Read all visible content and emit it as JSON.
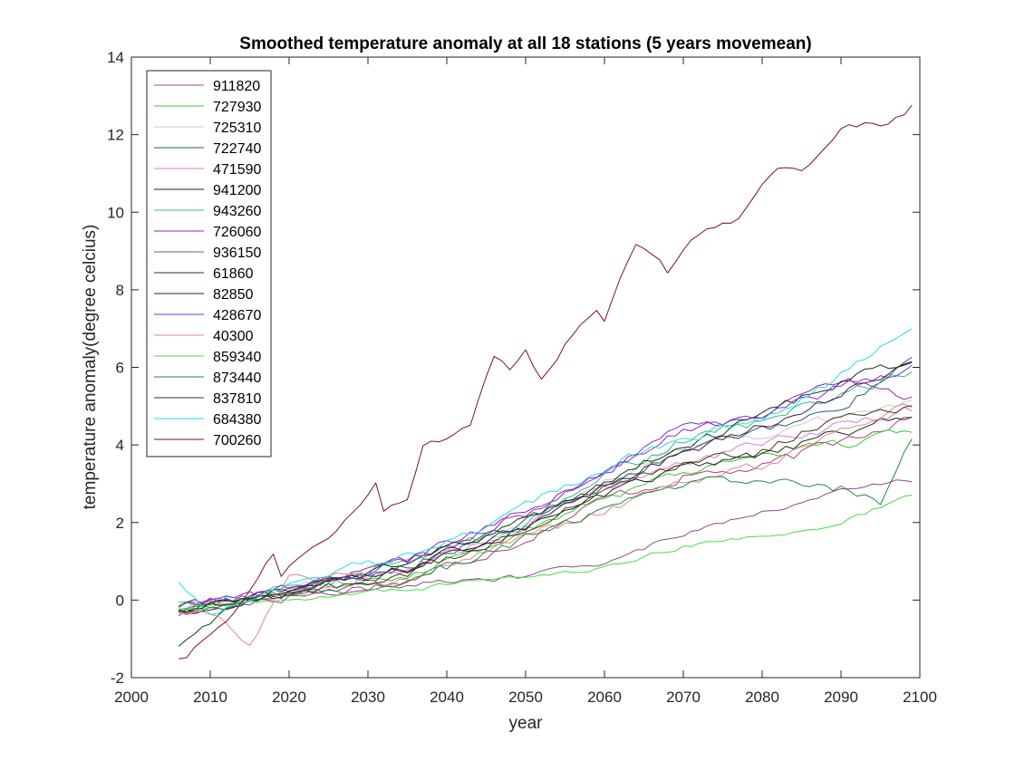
{
  "chart_data": {
    "type": "line",
    "title": "Smoothed temperature anomaly at all 18 stations (5 years movemean)",
    "xlabel": "year",
    "ylabel": "temperature anomaly(degree celcius)",
    "xlim": [
      2000,
      2100
    ],
    "ylim": [
      -2,
      14
    ],
    "xticks": [
      2000,
      2010,
      2020,
      2030,
      2040,
      2050,
      2060,
      2070,
      2080,
      2090,
      2100
    ],
    "yticks": [
      -2,
      0,
      2,
      4,
      6,
      8,
      10,
      12,
      14
    ],
    "grid": false,
    "legend_position": "top-left",
    "x_range": [
      2006,
      2099
    ],
    "series": [
      {
        "name": "911820",
        "color": "#b0407a",
        "anchors": [
          [
            2006,
            -0.1
          ],
          [
            2020,
            0.1
          ],
          [
            2035,
            0.5
          ],
          [
            2050,
            1.6
          ],
          [
            2060,
            2.6
          ],
          [
            2070,
            3.2
          ],
          [
            2080,
            3.4
          ],
          [
            2090,
            4.1
          ],
          [
            2099,
            4.8
          ]
        ],
        "noise": 0.28
      },
      {
        "name": "727930",
        "color": "#33cc33",
        "anchors": [
          [
            2006,
            -0.2
          ],
          [
            2020,
            0.2
          ],
          [
            2035,
            0.7
          ],
          [
            2050,
            1.8
          ],
          [
            2060,
            2.7
          ],
          [
            2070,
            3.3
          ],
          [
            2080,
            3.8
          ],
          [
            2090,
            4.0
          ],
          [
            2099,
            4.3
          ]
        ],
        "noise": 0.28
      },
      {
        "name": "725310",
        "color": "#c8c8c8",
        "anchors": [
          [
            2006,
            -0.2
          ],
          [
            2020,
            0.3
          ],
          [
            2035,
            0.9
          ],
          [
            2050,
            2.0
          ],
          [
            2060,
            3.0
          ],
          [
            2070,
            4.0
          ],
          [
            2080,
            4.3
          ],
          [
            2090,
            4.7
          ],
          [
            2099,
            5.1
          ]
        ],
        "noise": 0.25
      },
      {
        "name": "722740",
        "color": "#1f5f5f",
        "anchors": [
          [
            2006,
            -0.3
          ],
          [
            2020,
            0.2
          ],
          [
            2035,
            0.9
          ],
          [
            2050,
            2.0
          ],
          [
            2060,
            3.0
          ],
          [
            2070,
            3.8
          ],
          [
            2080,
            4.4
          ],
          [
            2090,
            5.0
          ],
          [
            2099,
            6.1
          ]
        ],
        "noise": 0.25
      },
      {
        "name": "471590",
        "color": "#d080d0",
        "anchors": [
          [
            2006,
            -0.2
          ],
          [
            2020,
            0.2
          ],
          [
            2035,
            0.8
          ],
          [
            2050,
            1.9
          ],
          [
            2060,
            2.9
          ],
          [
            2070,
            3.6
          ],
          [
            2080,
            4.0
          ],
          [
            2090,
            4.5
          ],
          [
            2099,
            4.9
          ]
        ],
        "noise": 0.25
      },
      {
        "name": "941200",
        "color": "#222222",
        "anchors": [
          [
            2006,
            -0.3
          ],
          [
            2020,
            0.2
          ],
          [
            2035,
            0.8
          ],
          [
            2050,
            1.9
          ],
          [
            2060,
            2.7
          ],
          [
            2070,
            3.4
          ],
          [
            2080,
            3.7
          ],
          [
            2090,
            4.3
          ],
          [
            2099,
            4.8
          ]
        ],
        "noise": 0.25
      },
      {
        "name": "943260",
        "color": "#33bb88",
        "anchors": [
          [
            2006,
            -0.1
          ],
          [
            2020,
            0.3
          ],
          [
            2035,
            1.0
          ],
          [
            2050,
            2.0
          ],
          [
            2060,
            3.2
          ],
          [
            2070,
            4.1
          ],
          [
            2080,
            4.6
          ],
          [
            2090,
            5.3
          ],
          [
            2099,
            5.9
          ]
        ],
        "noise": 0.28
      },
      {
        "name": "726060",
        "color": "#9922aa",
        "anchors": [
          [
            2006,
            -0.2
          ],
          [
            2020,
            0.3
          ],
          [
            2035,
            1.0
          ],
          [
            2050,
            2.2
          ],
          [
            2060,
            3.3
          ],
          [
            2070,
            4.4
          ],
          [
            2080,
            4.8
          ],
          [
            2090,
            5.7
          ],
          [
            2099,
            5.2
          ]
        ],
        "noise": 0.25
      },
      {
        "name": "936150",
        "color": "#8e4a8e",
        "anchors": [
          [
            2006,
            -0.3
          ],
          [
            2020,
            0.1
          ],
          [
            2035,
            0.4
          ],
          [
            2050,
            0.6
          ],
          [
            2060,
            1.0
          ],
          [
            2070,
            1.7
          ],
          [
            2080,
            2.3
          ],
          [
            2090,
            2.8
          ],
          [
            2099,
            3.1
          ]
        ],
        "noise": 0.15
      },
      {
        "name": "61860",
        "color": "#4a1a4a",
        "anchors": [
          [
            2006,
            -0.4
          ],
          [
            2020,
            0.2
          ],
          [
            2035,
            0.8
          ],
          [
            2050,
            1.9
          ],
          [
            2060,
            3.0
          ],
          [
            2070,
            3.8
          ],
          [
            2080,
            4.5
          ],
          [
            2090,
            5.3
          ],
          [
            2099,
            6.2
          ]
        ],
        "noise": 0.25
      },
      {
        "name": "82850",
        "color": "#113311",
        "anchors": [
          [
            2006,
            -1.3
          ],
          [
            2012,
            -0.2
          ],
          [
            2020,
            0.3
          ],
          [
            2035,
            0.9
          ],
          [
            2050,
            2.0
          ],
          [
            2060,
            3.0
          ],
          [
            2070,
            4.0
          ],
          [
            2080,
            4.7
          ],
          [
            2090,
            5.6
          ],
          [
            2099,
            6.1
          ]
        ],
        "noise": 0.28
      },
      {
        "name": "428670",
        "color": "#7a2ee0",
        "anchors": [
          [
            2006,
            -0.3
          ],
          [
            2020,
            0.3
          ],
          [
            2035,
            1.0
          ],
          [
            2050,
            2.3
          ],
          [
            2060,
            3.3
          ],
          [
            2070,
            4.4
          ],
          [
            2080,
            4.7
          ],
          [
            2090,
            5.5
          ],
          [
            2099,
            6.0
          ]
        ],
        "noise": 0.25
      },
      {
        "name": "40300",
        "color": "#e08888",
        "anchors": [
          [
            2006,
            -0.2
          ],
          [
            2012,
            -0.6
          ],
          [
            2015,
            -1.2
          ],
          [
            2020,
            0.7
          ],
          [
            2035,
            0.5
          ],
          [
            2050,
            1.6
          ],
          [
            2060,
            2.3
          ],
          [
            2070,
            3.0
          ],
          [
            2080,
            3.5
          ],
          [
            2090,
            4.3
          ],
          [
            2099,
            5.0
          ]
        ],
        "noise": 0.25
      },
      {
        "name": "859340",
        "color": "#44dd44",
        "anchors": [
          [
            2006,
            -0.2
          ],
          [
            2020,
            0.0
          ],
          [
            2035,
            0.3
          ],
          [
            2050,
            0.6
          ],
          [
            2060,
            0.8
          ],
          [
            2070,
            1.4
          ],
          [
            2080,
            1.6
          ],
          [
            2090,
            2.0
          ],
          [
            2099,
            2.7
          ]
        ],
        "noise": 0.12
      },
      {
        "name": "873440",
        "color": "#228844",
        "anchors": [
          [
            2006,
            -0.1
          ],
          [
            2020,
            0.1
          ],
          [
            2035,
            0.5
          ],
          [
            2050,
            1.6
          ],
          [
            2060,
            2.3
          ],
          [
            2070,
            3.0
          ],
          [
            2080,
            3.2
          ],
          [
            2090,
            2.9
          ],
          [
            2095,
            2.6
          ],
          [
            2099,
            4.1
          ]
        ],
        "noise": 0.28
      },
      {
        "name": "837810",
        "color": "#3a3a10",
        "anchors": [
          [
            2006,
            -0.2
          ],
          [
            2020,
            0.1
          ],
          [
            2035,
            0.7
          ],
          [
            2050,
            1.8
          ],
          [
            2060,
            2.9
          ],
          [
            2070,
            3.5
          ],
          [
            2080,
            3.9
          ],
          [
            2090,
            4.7
          ],
          [
            2099,
            4.9
          ]
        ],
        "noise": 0.25
      },
      {
        "name": "684380",
        "color": "#22dddd",
        "anchors": [
          [
            2006,
            0.5
          ],
          [
            2010,
            -0.4
          ],
          [
            2020,
            0.4
          ],
          [
            2035,
            1.2
          ],
          [
            2050,
            2.4
          ],
          [
            2060,
            3.4
          ],
          [
            2070,
            4.2
          ],
          [
            2080,
            4.6
          ],
          [
            2090,
            5.8
          ],
          [
            2099,
            7.2
          ]
        ],
        "noise": 0.25
      },
      {
        "name": "700260",
        "color": "#7a1030",
        "anchors": [
          [
            2006,
            -1.5
          ],
          [
            2007,
            -1.5
          ],
          [
            2010,
            -0.9
          ],
          [
            2014,
            -0.1
          ],
          [
            2018,
            1.2
          ],
          [
            2019,
            0.6
          ],
          [
            2022,
            1.2
          ],
          [
            2025,
            1.5
          ],
          [
            2028,
            2.2
          ],
          [
            2031,
            3.0
          ],
          [
            2032,
            2.3
          ],
          [
            2035,
            2.7
          ],
          [
            2037,
            4.0
          ],
          [
            2040,
            4.2
          ],
          [
            2043,
            4.5
          ],
          [
            2046,
            6.3
          ],
          [
            2048,
            6.0
          ],
          [
            2050,
            6.5
          ],
          [
            2052,
            5.7
          ],
          [
            2054,
            6.3
          ],
          [
            2057,
            7.2
          ],
          [
            2059,
            7.6
          ],
          [
            2060,
            7.2
          ],
          [
            2062,
            8.4
          ],
          [
            2064,
            9.2
          ],
          [
            2067,
            8.8
          ],
          [
            2068,
            8.5
          ],
          [
            2071,
            9.2
          ],
          [
            2074,
            9.6
          ],
          [
            2077,
            9.8
          ],
          [
            2079,
            10.4
          ],
          [
            2082,
            11.1
          ],
          [
            2085,
            11.0
          ],
          [
            2088,
            11.7
          ],
          [
            2090,
            12.2
          ],
          [
            2093,
            12.3
          ],
          [
            2096,
            12.2
          ],
          [
            2098,
            12.5
          ],
          [
            2099,
            12.8
          ]
        ],
        "noise": 0.18
      }
    ]
  }
}
